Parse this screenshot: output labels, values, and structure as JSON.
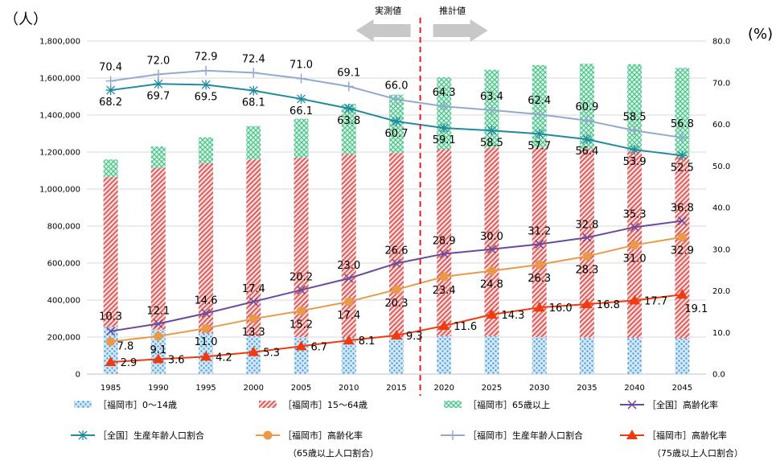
{
  "chart_data": {
    "type": "bar",
    "categories": [
      "1985",
      "1990",
      "1995",
      "2000",
      "2005",
      "2010",
      "2015",
      "2020",
      "2025",
      "2030",
      "2035",
      "2040",
      "2045"
    ],
    "left_axis": {
      "unit": "（人）",
      "ylim": [
        0,
        1800000
      ],
      "ticks": [
        "0",
        "200,000",
        "400,000",
        "600,000",
        "800,000",
        "1,000,000",
        "1,200,000",
        "1,400,000",
        "1,600,000",
        "1,800,000"
      ]
    },
    "right_axis": {
      "unit": "(%)",
      "ylim": [
        0,
        80
      ],
      "ticks": [
        "0.0",
        "10.0",
        "20.0",
        "30.0",
        "40.0",
        "50.0",
        "60.0",
        "70.0",
        "80.0"
      ]
    },
    "annotations": {
      "actual": "実測値",
      "estimate": "推計値",
      "divider_after": "2015"
    },
    "colors": {
      "young": "#4a9bd6",
      "working": "#e05a5a",
      "elderly": "#4cc38a",
      "nat_aging": "#6a4a9a",
      "nat_working": "#1f8aa0",
      "fuk_aging65": "#e89a4a",
      "fuk_working": "#93a9cf",
      "fuk_aging75": "#f03a10",
      "divider": "#e31b23"
    },
    "bar_series": [
      {
        "key": "young",
        "name": "［福岡市］0～14歳",
        "values": [
          255000,
          240000,
          220000,
          205000,
          200000,
          195000,
          200000,
          205000,
          205000,
          200000,
          197000,
          195000,
          192000
        ]
      },
      {
        "key": "working",
        "name": "［福岡市］15～64歳",
        "values": [
          810000,
          875000,
          920000,
          955000,
          970000,
          995000,
          995000,
          1010000,
          1020000,
          1025000,
          1020000,
          1010000,
          985000
        ]
      },
      {
        "key": "elderly",
        "name": "［福岡市］65歳以上",
        "values": [
          95000,
          115000,
          140000,
          180000,
          210000,
          270000,
          315000,
          390000,
          420000,
          445000,
          460000,
          470000,
          478000
        ]
      }
    ],
    "line_series": [
      {
        "key": "nat_aging",
        "name": "［全国］高齢化率",
        "marker": "x",
        "values": [
          10.3,
          12.1,
          14.6,
          17.4,
          20.2,
          23.0,
          26.6,
          28.9,
          30.0,
          31.2,
          32.8,
          35.3,
          36.8
        ]
      },
      {
        "key": "nat_working",
        "name": "［全国］生産年齢人口割合",
        "marker": "star",
        "values": [
          68.2,
          69.7,
          69.5,
          68.1,
          66.1,
          63.8,
          60.7,
          59.1,
          58.5,
          57.7,
          56.4,
          53.9,
          52.5
        ]
      },
      {
        "key": "fuk_aging65",
        "name": "［福岡市］高齢化率",
        "name2": "（65歳以上人口割合）",
        "marker": "circle",
        "values": [
          7.8,
          9.1,
          11.0,
          13.3,
          15.2,
          17.4,
          20.3,
          23.4,
          24.8,
          26.3,
          28.3,
          31.0,
          32.9
        ]
      },
      {
        "key": "fuk_working",
        "name": "［福岡市］生産年齢人口割合",
        "marker": "plus",
        "values": [
          70.4,
          72.0,
          72.9,
          72.4,
          71.0,
          69.1,
          66.0,
          64.3,
          63.4,
          62.4,
          60.9,
          58.5,
          56.8
        ]
      },
      {
        "key": "fuk_aging75",
        "name": "［福岡市］高齢化率",
        "name2": "（75歳以上人口割合）",
        "marker": "triangle",
        "values": [
          2.9,
          3.6,
          4.2,
          5.3,
          6.7,
          8.1,
          9.3,
          11.6,
          14.3,
          16.0,
          16.8,
          17.7,
          19.1
        ]
      }
    ]
  }
}
